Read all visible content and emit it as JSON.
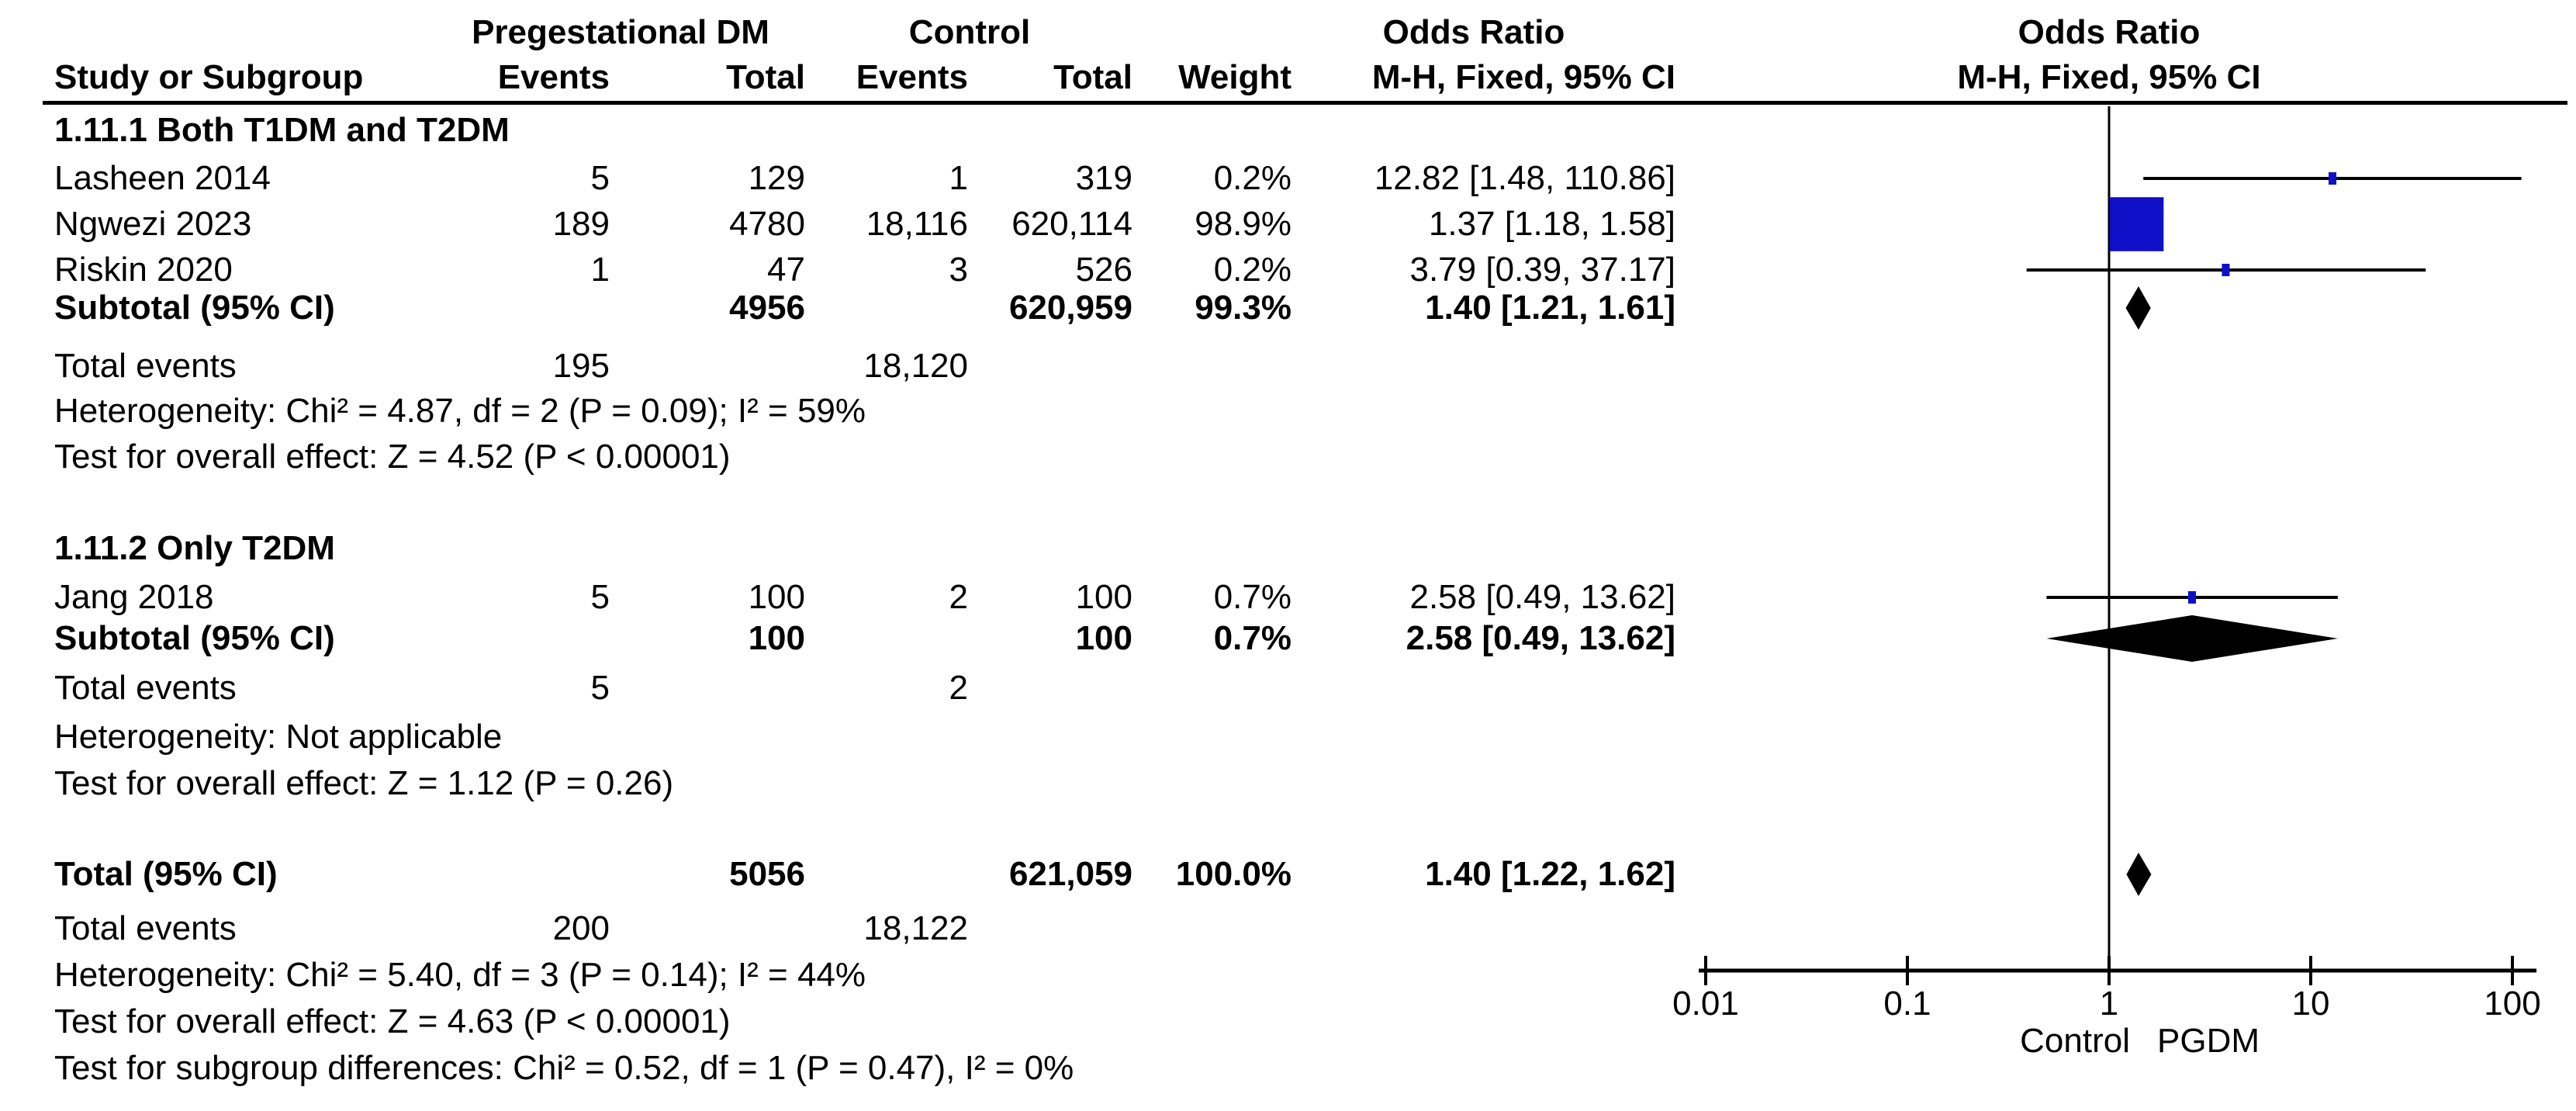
{
  "header": {
    "g1": "Pregestational DM",
    "g2": "Control",
    "or1": "Odds Ratio",
    "or1_sub": "M-H, Fixed, 95% CI",
    "or2": "Odds Ratio",
    "or2_sub": "M-H, Fixed, 95% CI",
    "study": "Study or Subgroup",
    "events": "Events",
    "total": "Total",
    "events2": "Events",
    "total2": "Total",
    "weight": "Weight"
  },
  "s1": {
    "title": "1.11.1 Both T1DM and T2DM",
    "studies": [
      {
        "name": "Lasheen 2014",
        "e1": "5",
        "t1": "129",
        "e2": "1",
        "t2": "319",
        "w": "0.2%",
        "or": "12.82 [1.48, 110.86]"
      },
      {
        "name": "Ngwezi 2023",
        "e1": "189",
        "t1": "4780",
        "e2": "18,116",
        "t2": "620,114",
        "w": "98.9%",
        "or": "1.37 [1.18, 1.58]"
      },
      {
        "name": "Riskin 2020",
        "e1": "1",
        "t1": "47",
        "e2": "3",
        "t2": "526",
        "w": "0.2%",
        "or": "3.79 [0.39, 37.17]"
      }
    ],
    "subtotal": {
      "name": "Subtotal (95% CI)",
      "t1": "4956",
      "t2": "620,959",
      "w": "99.3%",
      "or": "1.40 [1.21, 1.61]"
    },
    "te_label": "Total events",
    "te1": "195",
    "te2": "18,120",
    "het": "Heterogeneity: Chi² = 4.87, df = 2 (P = 0.09); I² = 59%",
    "test": "Test for overall effect: Z = 4.52 (P < 0.00001)"
  },
  "s2": {
    "title": "1.11.2 Only T2DM",
    "studies": [
      {
        "name": "Jang 2018",
        "e1": "5",
        "t1": "100",
        "e2": "2",
        "t2": "100",
        "w": "0.7%",
        "or": "2.58 [0.49, 13.62]"
      }
    ],
    "subtotal": {
      "name": "Subtotal (95% CI)",
      "t1": "100",
      "t2": "100",
      "w": "0.7%",
      "or": "2.58 [0.49, 13.62]"
    },
    "te_label": "Total events",
    "te1": "5",
    "te2": "2",
    "het": "Heterogeneity: Not applicable",
    "test": "Test for overall effect: Z = 1.12 (P = 0.26)"
  },
  "total": {
    "name": "Total (95% CI)",
    "t1": "5056",
    "t2": "621,059",
    "w": "100.0%",
    "or": "1.40 [1.22, 1.62]",
    "te_label": "Total events",
    "te1": "200",
    "te2": "18,122",
    "het": "Heterogeneity: Chi² = 5.40, df = 3 (P = 0.14); I² = 44%",
    "test": "Test for overall effect: Z = 4.63 (P < 0.00001)",
    "subdiff": "Test for subgroup differences: Chi² = 0.52, df = 1 (P = 0.47), I² = 0%"
  },
  "chart_data": {
    "type": "forest",
    "effect_measure": "Odds Ratio, M-H, Fixed, 95% CI",
    "marker_color": "#0F0FC8",
    "line_color": "#000000",
    "x_axis": {
      "scale": "log10",
      "min": 0.01,
      "max": 100,
      "ticks": [
        0.01,
        0.1,
        1,
        10,
        100
      ],
      "null_line": 1,
      "label_left": "Control",
      "label_right": "PGDM"
    },
    "rows": [
      {
        "label": "Lasheen 2014",
        "kind": "study",
        "or": 12.82,
        "ci_low": 1.48,
        "ci_high": 110.86,
        "weight_pct": 0.2
      },
      {
        "label": "Ngwezi 2023",
        "kind": "study",
        "or": 1.37,
        "ci_low": 1.18,
        "ci_high": 1.58,
        "weight_pct": 98.9
      },
      {
        "label": "Riskin 2020",
        "kind": "study",
        "or": 3.79,
        "ci_low": 0.39,
        "ci_high": 37.17,
        "weight_pct": 0.2
      },
      {
        "label": "Subtotal 1.11.1",
        "kind": "diamond",
        "or": 1.4,
        "ci_low": 1.21,
        "ci_high": 1.61
      },
      {
        "label": "Jang 2018",
        "kind": "study",
        "or": 2.58,
        "ci_low": 0.49,
        "ci_high": 13.62,
        "weight_pct": 0.7
      },
      {
        "label": "Subtotal 1.11.2",
        "kind": "diamond",
        "or": 2.58,
        "ci_low": 0.49,
        "ci_high": 13.62
      },
      {
        "label": "Total",
        "kind": "diamond",
        "or": 1.4,
        "ci_low": 1.22,
        "ci_high": 1.62
      }
    ]
  }
}
